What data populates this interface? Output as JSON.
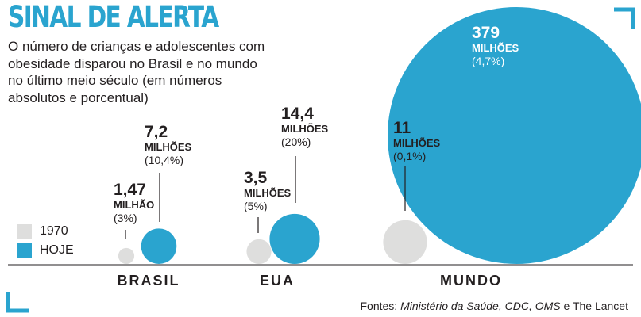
{
  "chart_data": {
    "type": "bubble",
    "title": "SINAL DE ALERTA",
    "subtitle": "O número de crianças e adolescentes com obesidade disparou no Brasil e no mundo no último meio século (em números absolutos e porcentual)",
    "categories": [
      "BRASIL",
      "EUA",
      "MUNDO"
    ],
    "series": [
      {
        "name": "1970",
        "color": "#dededd",
        "values": [
          1.47,
          3.5,
          11
        ],
        "units": [
          "MILHÃO",
          "MILHÕES",
          "MILHÕES"
        ],
        "value_labels": [
          "1,47",
          "3,5",
          "11"
        ],
        "percents": [
          "(3%)",
          "(5%)",
          "(0,1%)"
        ]
      },
      {
        "name": "HOJE",
        "color": "#2aa4cf",
        "values": [
          7.2,
          14.4,
          379
        ],
        "units": [
          "MILHÕES",
          "MILHÕES",
          "MILHÕES"
        ],
        "value_labels": [
          "7,2",
          "14,4",
          "379"
        ],
        "percents": [
          "(10,4%)",
          "(20%)",
          "(4,7%)"
        ]
      }
    ],
    "source": {
      "prefix": "Fontes: ",
      "italic": "Ministério da Saúde, CDC, OMS",
      "conj": " e ",
      "tail": "The Lancet"
    }
  },
  "colors": {
    "accent": "#2aa4cf",
    "grey": "#dededd",
    "text": "#231f20"
  }
}
